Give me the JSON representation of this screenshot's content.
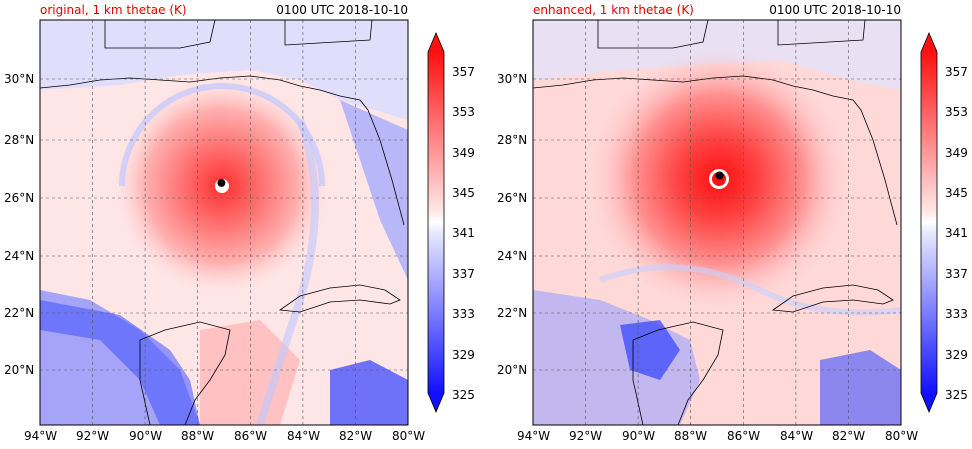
{
  "panels": [
    {
      "title_left": "original, 1 km thetae (K)",
      "title_right": "0100 UTC 2018-10-10"
    },
    {
      "title_left": "enhanced, 1 km thetae (K)",
      "title_right": "0100 UTC 2018-10-10"
    }
  ],
  "map": {
    "lon_ticks": [
      "94°W",
      "92°W",
      "90°W",
      "88°W",
      "86°W",
      "84°W",
      "82°W",
      "80°W"
    ],
    "lat_ticks": [
      "30°N",
      "28°N",
      "26°N",
      "24°N",
      "22°N",
      "20°N"
    ],
    "lon_range": [
      -94,
      -80
    ],
    "lat_range": [
      18.2,
      32
    ],
    "storm_center": [
      {
        "lon": -87.1,
        "lat": 26.45
      },
      {
        "lon": -86.9,
        "lat": 26.7
      }
    ]
  },
  "colorbar": {
    "ticks": [
      "357",
      "353",
      "349",
      "345",
      "341",
      "337",
      "333",
      "329",
      "325"
    ],
    "levels": [
      325,
      327,
      329,
      331,
      333,
      335,
      337,
      339,
      341,
      343,
      345,
      347,
      349,
      351,
      353,
      355,
      357
    ],
    "colors": [
      "#1010ff",
      "#3030ff",
      "#5050ff",
      "#7070ff",
      "#9090ff",
      "#b0b0ff",
      "#c8c8ff",
      "#e0e0ff",
      "#ffffff",
      "#ffe0e0",
      "#ffc8c8",
      "#ffb0b0",
      "#ff9090",
      "#ff7070",
      "#ff5050",
      "#ff3030",
      "#ff1010"
    ],
    "extend": "both",
    "units": "K"
  },
  "colors": {
    "warm": "#ff4040",
    "cool": "#3040ff",
    "neutral": "#ffffff",
    "title_accent": "#e00000"
  }
}
